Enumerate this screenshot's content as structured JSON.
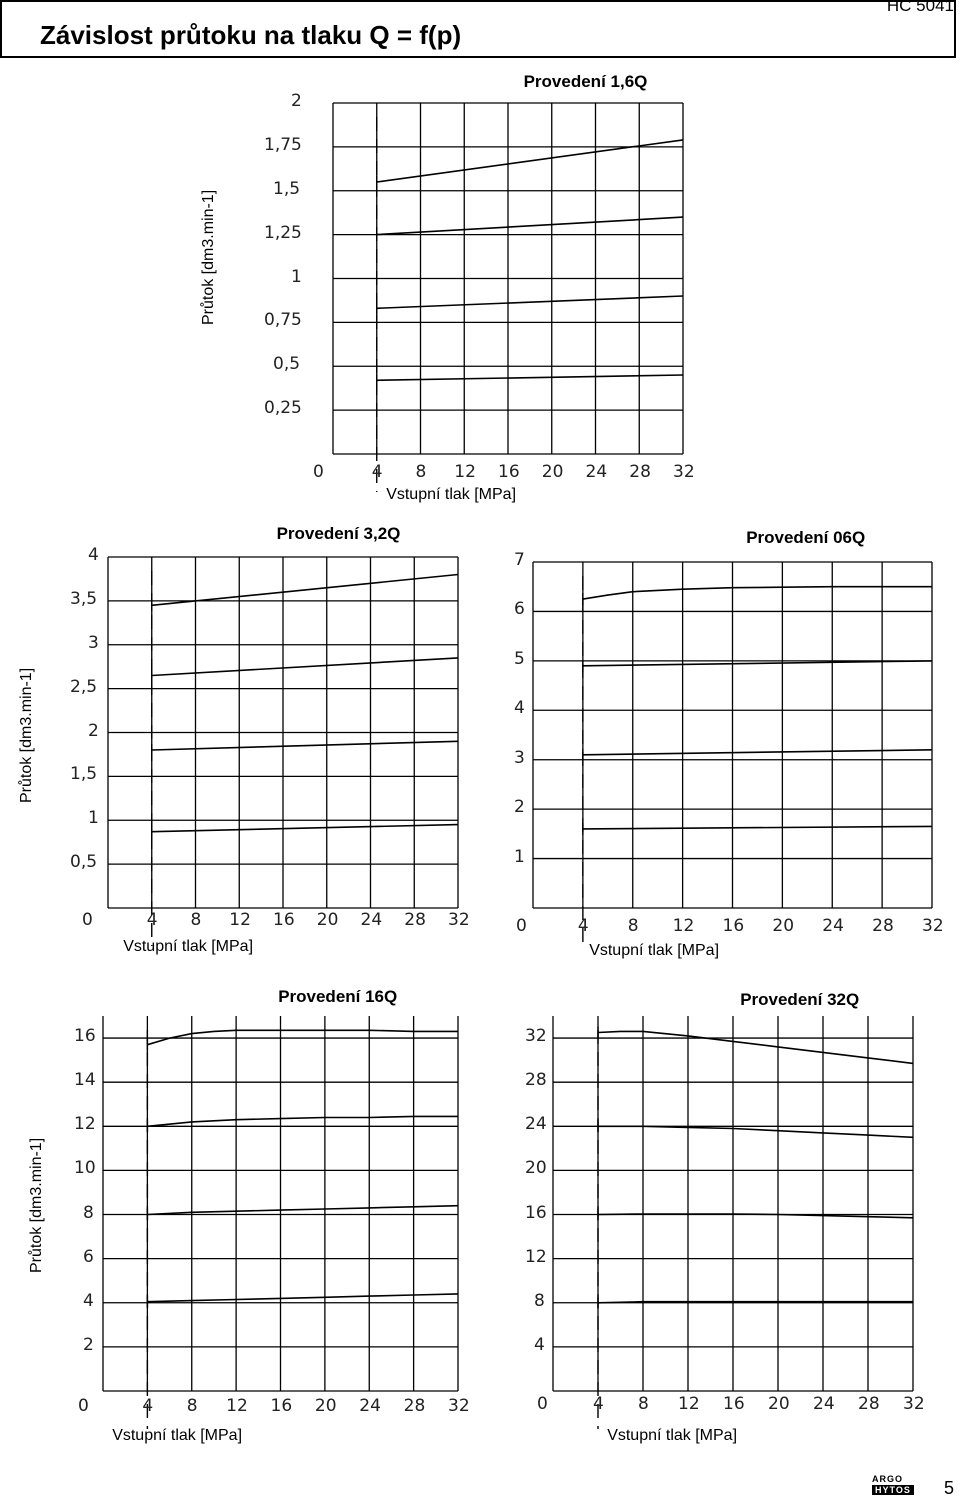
{
  "header": {
    "title": "Závislost průtoku na tlaku Q = f(p)",
    "code": "HC 5041"
  },
  "footer": {
    "page": "5",
    "logo_top": "ARGO",
    "logo_bottom": "HYTOS"
  },
  "chart_data": [
    {
      "type": "line",
      "title": "Provedení 1,6Q",
      "xlabel": "Vstupní tlak [MPa]",
      "ylabel": "Průtok [dm3.min-1]",
      "xlim": [
        0,
        32
      ],
      "ylim": [
        0,
        2
      ],
      "xticks": [
        "0",
        "4",
        "8",
        "12",
        "16",
        "20",
        "24",
        "28",
        "32"
      ],
      "yticks": [
        "0,25",
        "0,5",
        "0,75",
        "1",
        "1,25",
        "1,5",
        "1,75",
        "2"
      ],
      "grid": true,
      "dashed_x": 4,
      "series": [
        {
          "x": [
            4,
            32
          ],
          "y": [
            1.55,
            1.79
          ]
        },
        {
          "x": [
            4,
            32
          ],
          "y": [
            1.25,
            1.35
          ]
        },
        {
          "x": [
            4,
            32
          ],
          "y": [
            0.83,
            0.9
          ]
        },
        {
          "x": [
            4,
            32
          ],
          "y": [
            0.42,
            0.45
          ]
        }
      ]
    },
    {
      "type": "line",
      "title": "Provedení 3,2Q",
      "xlabel": "Vstupní tlak [MPa]",
      "ylabel": "Průtok [dm3.min-1]",
      "xlim": [
        0,
        32
      ],
      "ylim": [
        0,
        4
      ],
      "xticks": [
        "0",
        "4",
        "8",
        "12",
        "16",
        "20",
        "24",
        "28",
        "32"
      ],
      "yticks": [
        "0,5",
        "1",
        "1,5",
        "2",
        "2,5",
        "3",
        "3,5",
        "4"
      ],
      "grid": true,
      "dashed_x": 4,
      "series": [
        {
          "x": [
            4,
            32
          ],
          "y": [
            3.45,
            3.8
          ]
        },
        {
          "x": [
            4,
            32
          ],
          "y": [
            2.65,
            2.85
          ]
        },
        {
          "x": [
            4,
            32
          ],
          "y": [
            1.8,
            1.9
          ]
        },
        {
          "x": [
            4,
            32
          ],
          "y": [
            0.87,
            0.95
          ]
        }
      ]
    },
    {
      "type": "line",
      "title": "Provedení 06Q",
      "xlabel": "Vstupní tlak [MPa]",
      "ylabel": "",
      "xlim": [
        0,
        32
      ],
      "ylim": [
        0,
        7
      ],
      "xticks": [
        "0",
        "4",
        "8",
        "12",
        "16",
        "20",
        "24",
        "28",
        "32"
      ],
      "yticks": [
        "1",
        "2",
        "3",
        "4",
        "5",
        "6",
        "7"
      ],
      "grid": true,
      "dashed_x": 4,
      "series": [
        {
          "x": [
            4,
            6,
            8,
            12,
            16,
            20,
            24,
            28,
            32
          ],
          "y": [
            6.25,
            6.33,
            6.4,
            6.45,
            6.48,
            6.49,
            6.5,
            6.5,
            6.5
          ]
        },
        {
          "x": [
            4,
            32
          ],
          "y": [
            4.9,
            5.0
          ]
        },
        {
          "x": [
            4,
            32
          ],
          "y": [
            3.1,
            3.2
          ]
        },
        {
          "x": [
            4,
            32
          ],
          "y": [
            1.6,
            1.65
          ]
        }
      ]
    },
    {
      "type": "line",
      "title": "Provedení 16Q",
      "xlabel": "Vstupní tlak [MPa]",
      "ylabel": "Průtok [dm3.min-1]",
      "xlim": [
        0,
        32
      ],
      "ylim": [
        0,
        17
      ],
      "xticks": [
        "0",
        "4",
        "8",
        "12",
        "16",
        "20",
        "24",
        "28",
        "32"
      ],
      "yticks": [
        "2",
        "4",
        "6",
        "8",
        "10",
        "12",
        "14",
        "16"
      ],
      "grid": true,
      "dashed_x": 4,
      "series": [
        {
          "x": [
            4,
            6,
            8,
            10,
            12,
            16,
            20,
            24,
            28,
            32
          ],
          "y": [
            15.7,
            16.0,
            16.2,
            16.3,
            16.35,
            16.35,
            16.35,
            16.35,
            16.3,
            16.3
          ]
        },
        {
          "x": [
            4,
            8,
            12,
            16,
            20,
            24,
            28,
            32
          ],
          "y": [
            12.0,
            12.2,
            12.3,
            12.35,
            12.4,
            12.4,
            12.45,
            12.45
          ]
        },
        {
          "x": [
            4,
            8,
            12,
            16,
            20,
            24,
            28,
            32
          ],
          "y": [
            8.0,
            8.1,
            8.15,
            8.2,
            8.25,
            8.3,
            8.35,
            8.4
          ]
        },
        {
          "x": [
            4,
            8,
            12,
            16,
            20,
            24,
            28,
            32
          ],
          "y": [
            4.05,
            4.1,
            4.15,
            4.2,
            4.25,
            4.3,
            4.35,
            4.4
          ]
        }
      ]
    },
    {
      "type": "line",
      "title": "Provedení 32Q",
      "xlabel": "Vstupní tlak [MPa]",
      "ylabel": "",
      "xlim": [
        0,
        32
      ],
      "ylim": [
        0,
        34
      ],
      "xticks": [
        "0",
        "4",
        "8",
        "12",
        "16",
        "20",
        "24",
        "28",
        "32"
      ],
      "yticks": [
        "4",
        "8",
        "12",
        "16",
        "20",
        "24",
        "28",
        "32"
      ],
      "grid": true,
      "dashed_x": 4,
      "series": [
        {
          "x": [
            4,
            6,
            8,
            12,
            16,
            20,
            24,
            28,
            32
          ],
          "y": [
            32.5,
            32.6,
            32.6,
            32.2,
            31.7,
            31.2,
            30.7,
            30.2,
            29.7
          ]
        },
        {
          "x": [
            4,
            8,
            12,
            16,
            20,
            24,
            28,
            32
          ],
          "y": [
            24.0,
            24.0,
            23.9,
            23.8,
            23.6,
            23.4,
            23.2,
            23.0
          ]
        },
        {
          "x": [
            4,
            8,
            12,
            16,
            20,
            24,
            28,
            32
          ],
          "y": [
            16.0,
            16.05,
            16.05,
            16.05,
            16.0,
            15.9,
            15.8,
            15.7
          ]
        },
        {
          "x": [
            4,
            8,
            12,
            16,
            20,
            24,
            28,
            32
          ],
          "y": [
            8.0,
            8.1,
            8.1,
            8.1,
            8.1,
            8.1,
            8.1,
            8.1
          ]
        }
      ]
    }
  ]
}
